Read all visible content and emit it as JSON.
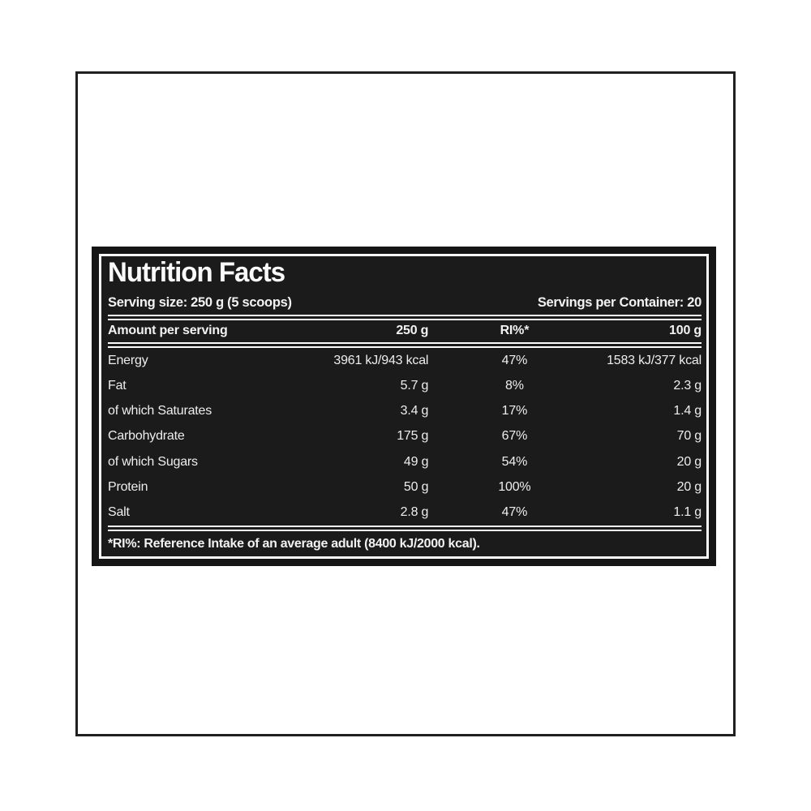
{
  "panel": {
    "title": "Nutrition Facts",
    "serving_size": "Serving size: 250 g (5 scoops)",
    "servings_per_container": "Servings per Container: 20",
    "columns": [
      "Amount per serving",
      "250 g",
      "RI%*",
      "100 g"
    ],
    "rows": [
      {
        "label": "Energy",
        "per_serving": "3961 kJ/943 kcal",
        "ri": "47%",
        "per_100g": "1583 kJ/377 kcal"
      },
      {
        "label": "Fat",
        "per_serving": "5.7 g",
        "ri": "8%",
        "per_100g": "2.3 g"
      },
      {
        "label": "of which Saturates",
        "per_serving": "3.4 g",
        "ri": "17%",
        "per_100g": "1.4 g"
      },
      {
        "label": "Carbohydrate",
        "per_serving": "175 g",
        "ri": "67%",
        "per_100g": "70 g"
      },
      {
        "label": "of which Sugars",
        "per_serving": "49 g",
        "ri": "54%",
        "per_100g": "20 g"
      },
      {
        "label": "Protein",
        "per_serving": "50 g",
        "ri": "100%",
        "per_100g": "20 g"
      },
      {
        "label": "Salt",
        "per_serving": "2.8 g",
        "ri": "47%",
        "per_100g": "1.1 g"
      }
    ],
    "footnote": "*RI%: Reference Intake of an average adult (8400 kJ/2000 kcal).",
    "colors": {
      "page_background": "#ffffff",
      "frame_border": "#202020",
      "panel_background": "#1b1b1b",
      "panel_text": "#f2f2f2",
      "separator": "#fbfbfb"
    }
  }
}
